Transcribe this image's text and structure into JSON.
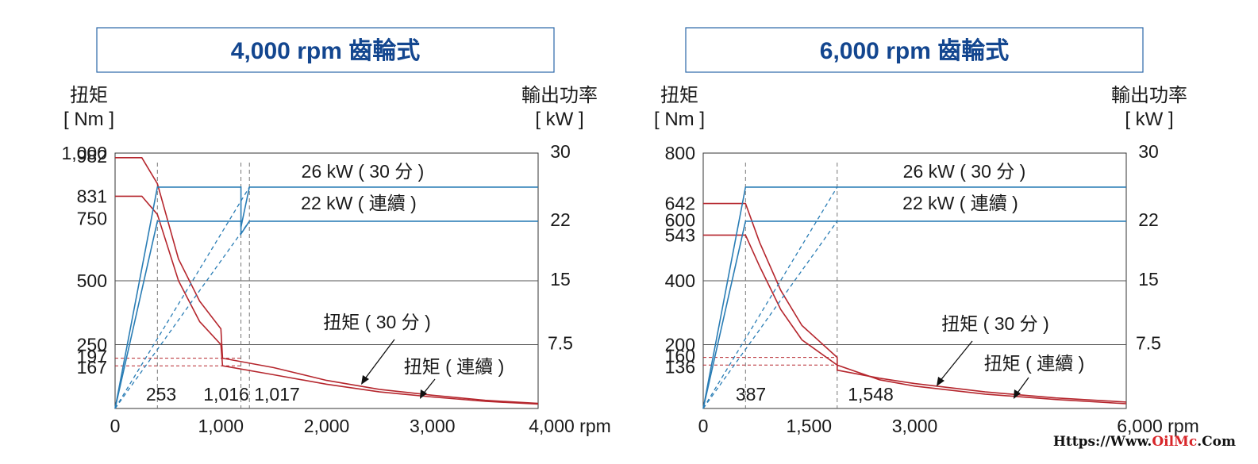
{
  "watermark": {
    "prefix": "Https://Www.",
    "brand": "OilMc",
    "suffix": ".Com"
  },
  "colors": {
    "torque": "#b5262d",
    "power": "#2a7db5",
    "title": "#13468f",
    "grid": "#555555"
  },
  "chart_data": [
    {
      "type": "line",
      "title": "4,000 rpm 齒輪式",
      "ylabel": "扭矩",
      "ylabel_unit": "[ Nm ]",
      "y2label": "輸出功率",
      "y2label_unit": "[ kW ]",
      "xlabel_unit": "rpm",
      "xlim": [
        0,
        4000
      ],
      "ylim": [
        0,
        1000
      ],
      "y2lim": [
        0,
        30
      ],
      "x_ticks": [
        0,
        1000,
        2000,
        3000,
        4000
      ],
      "x_tick_labels": [
        "0",
        "1,000",
        "2,000",
        "3,000",
        "4,000 rpm"
      ],
      "y_ticks": [
        1000,
        982,
        831,
        750,
        500,
        250,
        197,
        167
      ],
      "y_tick_labels": [
        "1,000",
        "982",
        "831",
        "750",
        "500",
        "250",
        "197",
        "167"
      ],
      "y2_ticks": [
        30,
        22,
        15,
        7.5
      ],
      "y2_tick_labels": [
        "30",
        "22",
        "15",
        "7.5"
      ],
      "gridlines_y": [
        500,
        250
      ],
      "marker_x": [
        253,
        1016,
        1017
      ],
      "marker_x_labels": [
        "253",
        "1,016",
        "1,017"
      ],
      "series": [
        {
          "name": "扭矩 ( 30 分 )",
          "kind": "torque",
          "points": [
            [
              0,
              982
            ],
            [
              253,
              982
            ],
            [
              400,
              880
            ],
            [
              600,
              585
            ],
            [
              800,
              420
            ],
            [
              1000,
              312
            ],
            [
              1016,
              197
            ],
            [
              1500,
              160
            ],
            [
              2000,
              110
            ],
            [
              2500,
              75
            ],
            [
              3000,
              52
            ],
            [
              3500,
              32
            ],
            [
              4000,
              20
            ]
          ]
        },
        {
          "name": "扭矩 ( 連續 )",
          "kind": "torque",
          "points": [
            [
              0,
              831
            ],
            [
              253,
              831
            ],
            [
              400,
              760
            ],
            [
              600,
              500
            ],
            [
              800,
              340
            ],
            [
              1000,
              250
            ],
            [
              1016,
              167
            ],
            [
              1500,
              132
            ],
            [
              2000,
              95
            ],
            [
              2500,
              65
            ],
            [
              3000,
              45
            ],
            [
              3500,
              28
            ],
            [
              4000,
              17
            ]
          ]
        },
        {
          "name": "26 kW ( 30 分 )",
          "kind": "power",
          "points": [
            [
              0,
              0
            ],
            [
              400,
              26
            ],
            [
              1190,
              26
            ],
            [
              1190,
              21.3
            ],
            [
              1270,
              26
            ],
            [
              4000,
              26
            ]
          ]
        },
        {
          "name": "22 kW ( 連續 )",
          "kind": "power",
          "points": [
            [
              0,
              0
            ],
            [
              400,
              22
            ],
            [
              1190,
              22
            ],
            [
              1190,
              20.5
            ],
            [
              1270,
              22
            ],
            [
              4000,
              22
            ]
          ]
        },
        {
          "name": "",
          "kind": "power-dashed",
          "points": [
            [
              0,
              0
            ],
            [
              1270,
              26
            ]
          ]
        },
        {
          "name": "",
          "kind": "power-dashed",
          "points": [
            [
              0,
              0
            ],
            [
              1270,
              22
            ]
          ]
        }
      ],
      "dashed_vlines": [
        400,
        1190,
        1270
      ],
      "dashed_hlines": [
        {
          "y": 197,
          "x_to": 1190
        },
        {
          "y": 167,
          "x_to": 1190
        }
      ],
      "annotations": [
        {
          "text": "26 kW ( 30 分 )"
        },
        {
          "text": "22 kW ( 連續 )"
        },
        {
          "text": "扭矩 ( 30 分 )"
        },
        {
          "text": "扭矩 ( 連續 )"
        }
      ]
    },
    {
      "type": "line",
      "title": "6,000 rpm 齒輪式",
      "ylabel": "扭矩",
      "ylabel_unit": "[ Nm ]",
      "y2label": "輸出功率",
      "y2label_unit": "[ kW ]",
      "xlabel_unit": "rpm",
      "xlim": [
        0,
        6000
      ],
      "ylim": [
        0,
        800
      ],
      "y2lim": [
        0,
        30
      ],
      "x_ticks": [
        0,
        1500,
        3000,
        6000
      ],
      "x_tick_labels": [
        "0",
        "1,500",
        "3,000",
        "6,000 rpm"
      ],
      "y_ticks": [
        800,
        642,
        600,
        543,
        400,
        200,
        160,
        136
      ],
      "y_tick_labels": [
        "800",
        "642",
        "600",
        "543",
        "400",
        "200",
        "160",
        "136"
      ],
      "y2_ticks": [
        30,
        22,
        15,
        7.5
      ],
      "y2_tick_labels": [
        "30",
        "22",
        "15",
        "7.5"
      ],
      "gridlines_y": [
        400,
        200
      ],
      "marker_x": [
        387,
        1548
      ],
      "marker_x_labels": [
        "387",
        "1,548"
      ],
      "series": [
        {
          "name": "扭矩 ( 30 分 )",
          "kind": "torque",
          "points": [
            [
              0,
              642
            ],
            [
              600,
              642
            ],
            [
              800,
              520
            ],
            [
              1100,
              370
            ],
            [
              1400,
              260
            ],
            [
              1900,
              160
            ],
            [
              1900,
              120
            ],
            [
              2500,
              95
            ],
            [
              3000,
              78
            ],
            [
              4000,
              52
            ],
            [
              5000,
              33
            ],
            [
              6000,
              20
            ]
          ]
        },
        {
          "name": "扭矩 ( 連續 )",
          "kind": "torque",
          "points": [
            [
              0,
              543
            ],
            [
              600,
              543
            ],
            [
              800,
              445
            ],
            [
              1100,
              310
            ],
            [
              1400,
              215
            ],
            [
              1900,
              136
            ],
            [
              2500,
              90
            ],
            [
              3000,
              70
            ],
            [
              4000,
              45
            ],
            [
              5000,
              28
            ],
            [
              6000,
              15
            ]
          ]
        },
        {
          "name": "26 kW ( 30 分 )",
          "kind": "power",
          "points": [
            [
              0,
              0
            ],
            [
              600,
              26
            ],
            [
              6000,
              26
            ]
          ]
        },
        {
          "name": "22 kW ( 連續 )",
          "kind": "power",
          "points": [
            [
              0,
              0
            ],
            [
              600,
              22
            ],
            [
              6000,
              22
            ]
          ]
        },
        {
          "name": "",
          "kind": "power-dashed",
          "points": [
            [
              0,
              0
            ],
            [
              1900,
              26
            ]
          ]
        },
        {
          "name": "",
          "kind": "power-dashed",
          "points": [
            [
              0,
              0
            ],
            [
              1900,
              22
            ]
          ]
        }
      ],
      "dashed_vlines": [
        600,
        1900
      ],
      "dashed_hlines": [
        {
          "y": 160,
          "x_to": 1900
        },
        {
          "y": 136,
          "x_to": 1900
        }
      ],
      "annotations": [
        {
          "text": "26 kW ( 30 分 )"
        },
        {
          "text": "22 kW ( 連續 )"
        },
        {
          "text": "扭矩 ( 30 分 )"
        },
        {
          "text": "扭矩 ( 連續 )"
        }
      ]
    }
  ]
}
